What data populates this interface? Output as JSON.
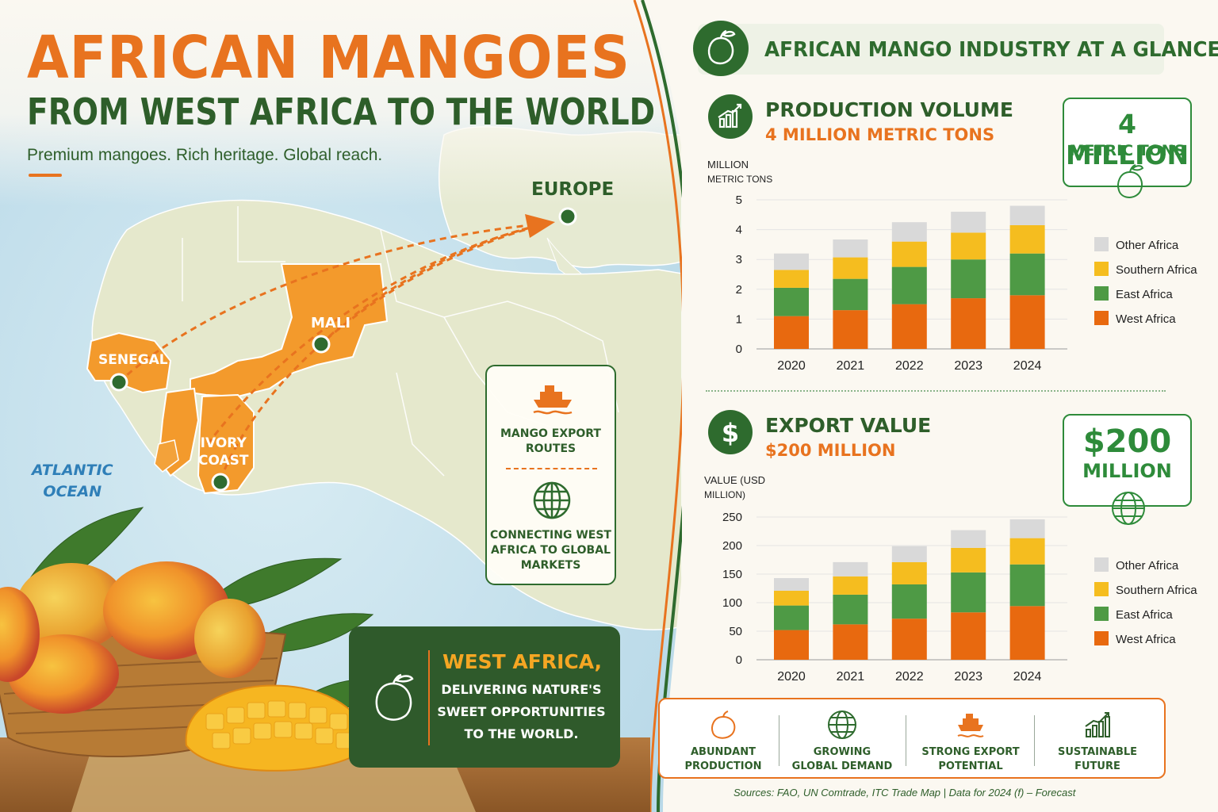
{
  "left": {
    "title": "AFRICAN MANGOES",
    "subtitle": "FROM WEST AFRICA TO THE WORLD",
    "tagline": "Premium mangoes.  Rich heritage.  Global reach.",
    "map_labels": {
      "europe": "EUROPE",
      "mali": "MALI",
      "senegal": "SENEGAL",
      "ivory_coast_line1": "IVORY",
      "ivory_coast_line2": "COAST",
      "atlantic_line1": "ATLANTIC",
      "atlantic_line2": "OCEAN"
    },
    "routes_card": {
      "line1": "MANGO EXPORT",
      "line2": "ROUTES",
      "line3": "CONNECTING WEST",
      "line4": "AFRICA TO GLOBAL",
      "line5": "MARKETS"
    },
    "west_africa_card": {
      "heading": "WEST AFRICA,",
      "line1": "DELIVERING NATURE'S",
      "line2": "SWEET OPPORTUNITIES",
      "line3": "TO THE WORLD."
    }
  },
  "right": {
    "header": "AFRICAN MANGO INDUSTRY AT A GLANCE",
    "production": {
      "title": "PRODUCTION VOLUME",
      "subtitle": "4 MILLION METRIC TONS",
      "kpi_value": "4 MILLION",
      "kpi_unit": "METRIC TONS"
    },
    "export": {
      "title": "EXPORT VALUE",
      "subtitle": "$200 MILLION",
      "kpi_value": "$200",
      "kpi_unit": "MILLION"
    },
    "benefits": [
      {
        "line1": "ABUNDANT",
        "line2": "PRODUCTION"
      },
      {
        "line1": "GROWING",
        "line2": "GLOBAL DEMAND"
      },
      {
        "line1": "STRONG EXPORT",
        "line2": "POTENTIAL"
      },
      {
        "line1": "SUSTAINABLE",
        "line2": "FUTURE"
      }
    ],
    "sources": "Sources: FAO, UN Comtrade, ITC Trade Map  |  Data for 2024 (f) – Forecast"
  },
  "colors": {
    "orange": "#e8731f",
    "dark_green": "#2e5e2a",
    "west_africa": "#e8690f",
    "east_africa": "#4e9a45",
    "southern_africa": "#f5bd1f",
    "other_africa": "#d9d9d9"
  },
  "chart_data": [
    {
      "type": "bar",
      "stacked": true,
      "ylabel_line1": "MILLION",
      "ylabel_line2": "METRIC TONS",
      "categories": [
        "2020",
        "2021",
        "2022",
        "2023",
        "2024"
      ],
      "ylim": [
        0,
        5
      ],
      "yticks": [
        "0",
        "1",
        "2",
        "3",
        "4",
        "5"
      ],
      "legend_position": "right",
      "series": [
        {
          "name": "West Africa",
          "color": "#e8690f",
          "values": [
            1.1,
            1.3,
            1.5,
            1.7,
            1.8
          ]
        },
        {
          "name": "East Africa",
          "color": "#4e9a45",
          "values": [
            0.95,
            1.05,
            1.25,
            1.3,
            1.4
          ]
        },
        {
          "name": "Southern Africa",
          "color": "#f5bd1f",
          "values": [
            0.6,
            0.72,
            0.85,
            0.9,
            0.95
          ]
        },
        {
          "name": "Other Africa",
          "color": "#d9d9d9",
          "values": [
            0.55,
            0.6,
            0.65,
            0.7,
            0.65
          ]
        }
      ]
    },
    {
      "type": "bar",
      "stacked": true,
      "ylabel_line1": "VALUE (USD",
      "ylabel_line2": "MILLION)",
      "categories": [
        "2020",
        "2021",
        "2022",
        "2023",
        "2024"
      ],
      "ylim": [
        0,
        250
      ],
      "yticks": [
        "0",
        "50",
        "100",
        "150",
        "200",
        "250"
      ],
      "legend_position": "right",
      "series": [
        {
          "name": "West Africa",
          "color": "#e8690f",
          "values": [
            52,
            62,
            72,
            83,
            94
          ]
        },
        {
          "name": "East Africa",
          "color": "#4e9a45",
          "values": [
            43,
            52,
            60,
            70,
            73
          ]
        },
        {
          "name": "Southern Africa",
          "color": "#f5bd1f",
          "values": [
            26,
            32,
            39,
            43,
            46
          ]
        },
        {
          "name": "Other Africa",
          "color": "#d9d9d9",
          "values": [
            22,
            25,
            28,
            31,
            33
          ]
        }
      ]
    }
  ]
}
